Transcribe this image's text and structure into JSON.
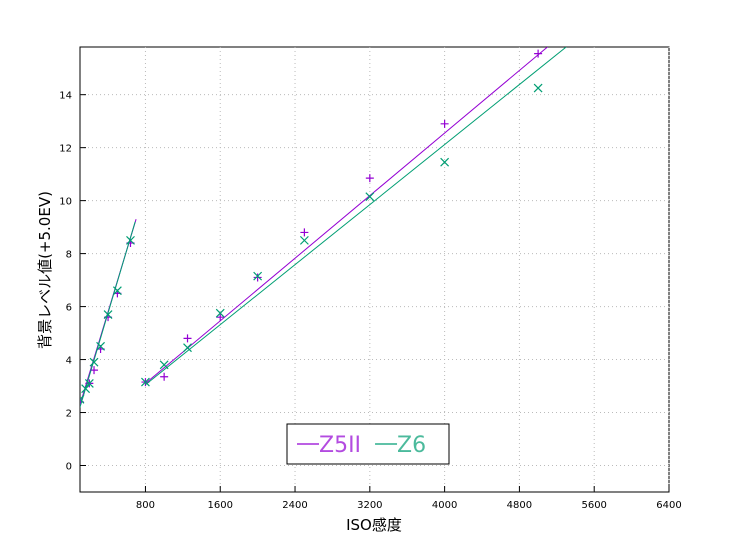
{
  "chart_data": {
    "type": "scatter",
    "xlabel": "ISO感度",
    "ylabel": "背景レベル値(+5.0EV)",
    "xlim": [
      100,
      6400
    ],
    "ylim": [
      -1,
      15.8
    ],
    "xticks": [
      800,
      1600,
      2400,
      3200,
      4000,
      4800,
      5600,
      6400
    ],
    "yticks": [
      0,
      2,
      4,
      6,
      8,
      10,
      12,
      14
    ],
    "grid": true,
    "legend": "bottom",
    "series": [
      {
        "name": "Z5II",
        "color": "#9400d3",
        "marker": "plus",
        "x": [
          100,
          200,
          250,
          320,
          400,
          500,
          640,
          800,
          1000,
          1250,
          1600,
          2000,
          2500,
          3200,
          4000,
          5000
        ],
        "values": [
          2.4,
          3.1,
          3.6,
          4.4,
          5.6,
          6.5,
          8.4,
          3.15,
          3.35,
          4.8,
          5.6,
          7.1,
          8.8,
          10.85,
          12.9,
          15.55
        ],
        "fits": [
          {
            "x": [
              100,
              700
            ],
            "values": [
              2.3,
              9.3
            ]
          },
          {
            "x": [
              800,
              5100
            ],
            "values": [
              3.1,
              15.8
            ]
          }
        ]
      },
      {
        "name": "Z6",
        "color": "#009e73",
        "marker": "cross",
        "x": [
          100,
          160,
          200,
          250,
          320,
          400,
          500,
          640,
          800,
          1000,
          1250,
          1600,
          2000,
          2500,
          3200,
          4000,
          5000
        ],
        "values": [
          2.5,
          2.9,
          3.1,
          3.9,
          4.5,
          5.7,
          6.6,
          8.5,
          3.15,
          3.8,
          4.45,
          5.75,
          7.15,
          8.5,
          10.15,
          11.45,
          14.25
        ],
        "fits": [
          {
            "x": [
              100,
              690
            ],
            "values": [
              2.2,
              9.2
            ]
          },
          {
            "x": [
              800,
              5300
            ],
            "values": [
              3.05,
              15.8
            ]
          }
        ]
      }
    ]
  }
}
